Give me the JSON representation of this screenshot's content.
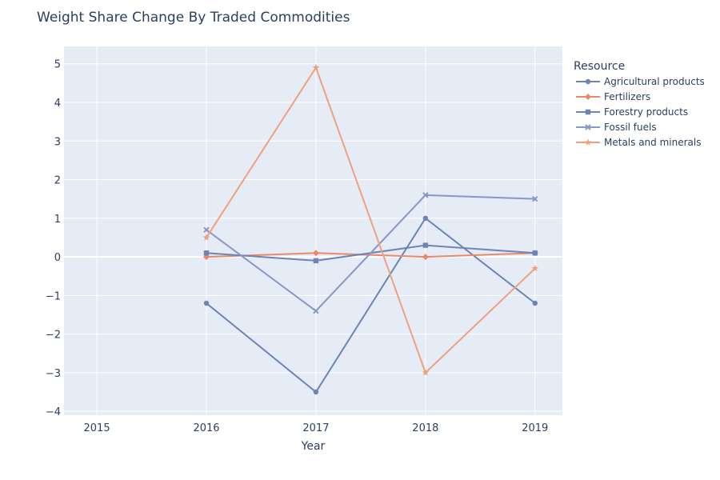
{
  "chart_data": {
    "type": "line",
    "title": "Weight Share Change By Traded Commodities",
    "xlabel": "Year",
    "ylabel": "",
    "x": [
      2016,
      2017,
      2018,
      2019
    ],
    "xlim": [
      2014.7,
      2019.25
    ],
    "ylim": [
      -4.1,
      5.45
    ],
    "x_ticks": [
      2015,
      2016,
      2017,
      2018,
      2019
    ],
    "y_ticks": [
      -4,
      -3,
      -2,
      -1,
      0,
      1,
      2,
      3,
      4,
      5
    ],
    "grid": true,
    "legend_title": "Resource",
    "legend_position": "top-right outside",
    "background_color": "#e5ecf6",
    "series": [
      {
        "name": "Agricultural products",
        "values": [
          -1.2,
          -3.5,
          1.0,
          -1.2
        ],
        "color": "#6d84b4",
        "marker": "circle"
      },
      {
        "name": "Fertilizers",
        "values": [
          0.0,
          0.1,
          0.0,
          0.1
        ],
        "color": "#e8896a",
        "marker": "diamond"
      },
      {
        "name": "Forestry products",
        "values": [
          0.1,
          -0.1,
          0.3,
          0.1
        ],
        "color": "#6d84b4",
        "marker": "square"
      },
      {
        "name": "Fossil fuels",
        "values": [
          0.7,
          -1.4,
          1.6,
          1.5
        ],
        "color": "#8a96c6",
        "marker": "x"
      },
      {
        "name": "Metals and minerals",
        "values": [
          0.5,
          4.9,
          -3.0,
          -0.3
        ],
        "color": "#f0a07e",
        "marker": "star"
      }
    ]
  }
}
